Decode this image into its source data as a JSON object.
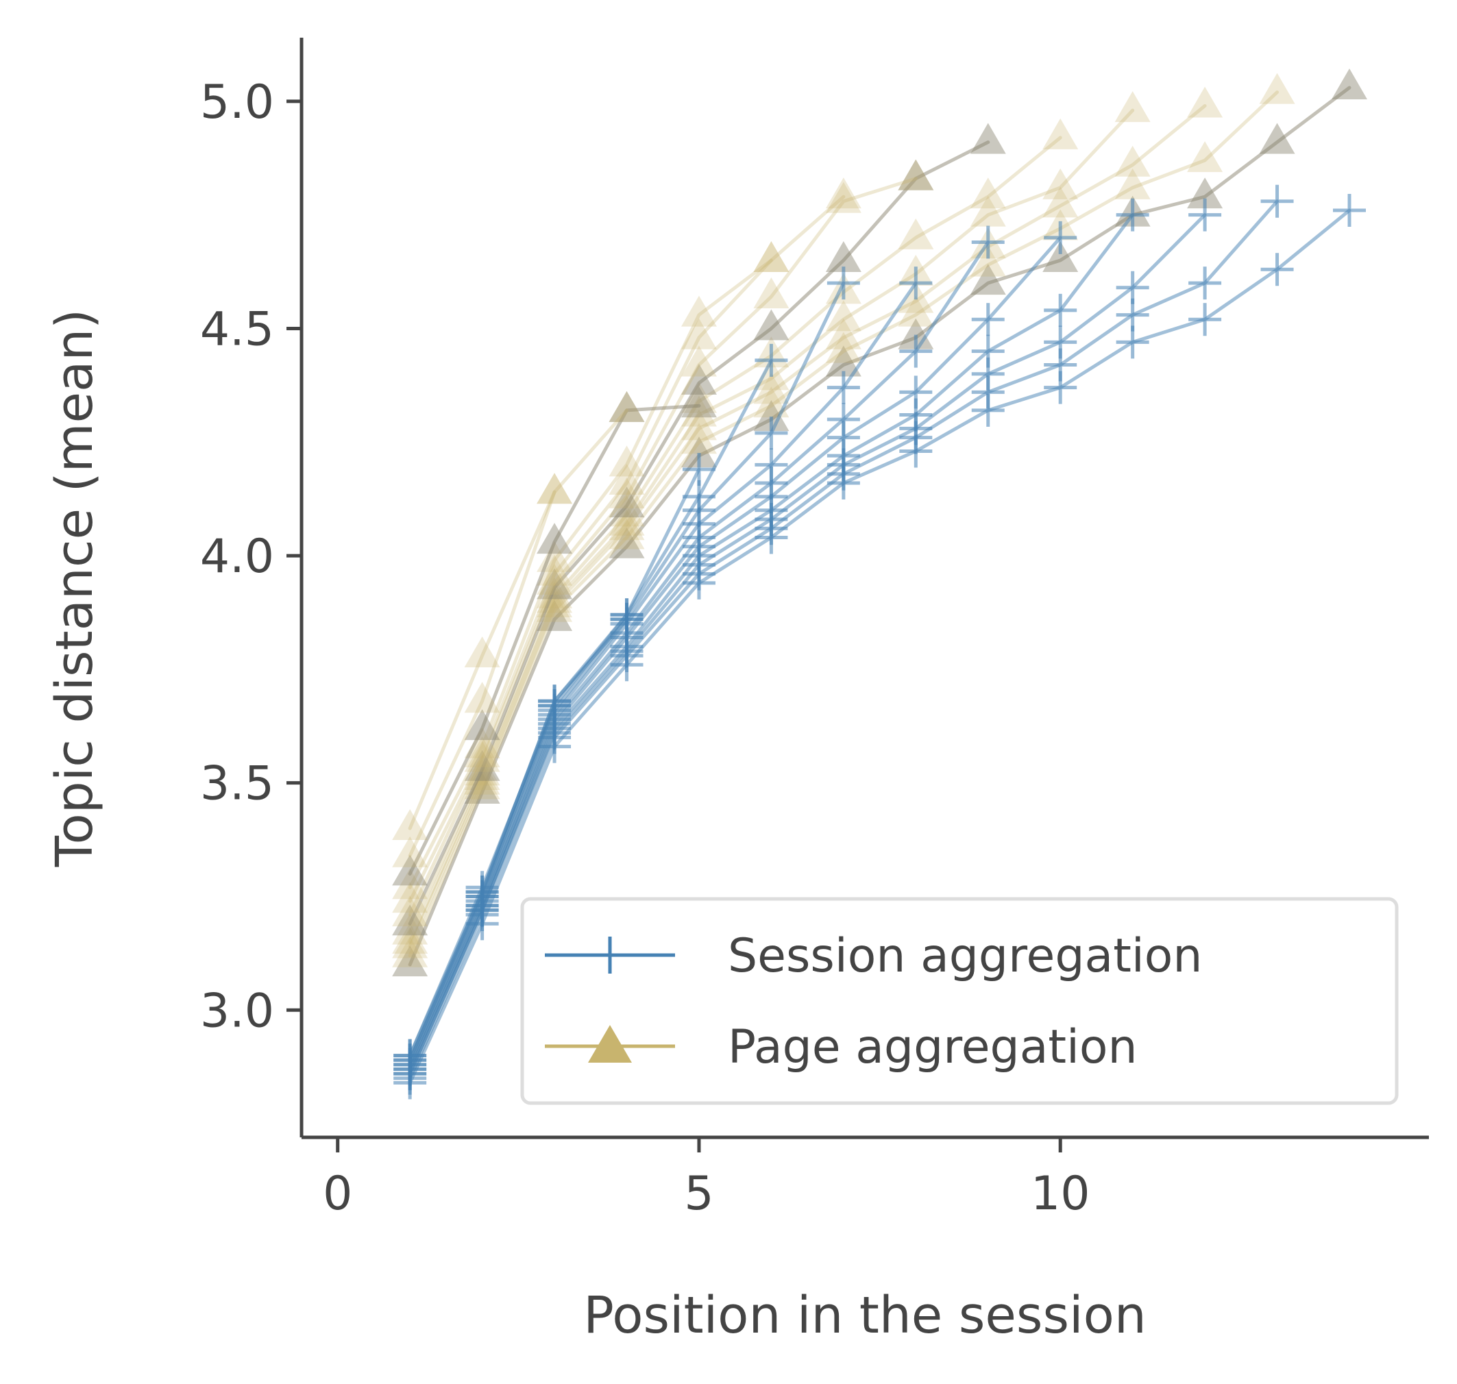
{
  "chart_data": {
    "type": "line",
    "title": "",
    "xlabel": "Position in the session",
    "ylabel": "Topic distance (mean)",
    "xlim": [
      -0.5,
      15.1
    ],
    "ylim": [
      2.72,
      5.14
    ],
    "xticks": [
      0,
      5,
      10
    ],
    "yticks": [
      3.0,
      3.5,
      4.0,
      4.5,
      5.0
    ],
    "xtick_labels": [
      "0",
      "5",
      "10"
    ],
    "ytick_labels": [
      "3.0",
      "3.5",
      "4.0",
      "4.5",
      "5.0"
    ],
    "grid": false,
    "legend": {
      "placement": "lower-right",
      "entries": [
        "Session aggregation",
        "Page aggregation"
      ]
    },
    "colors": {
      "session": "#4682b4",
      "page": "#c8b46e",
      "page_dark": "#8a8470",
      "axis": "#444444"
    },
    "series_groups": [
      {
        "group": "Session aggregation",
        "marker": "plus",
        "series": [
          {
            "x": [
              1,
              2,
              3,
              4,
              5,
              6,
              7,
              8,
              9,
              10,
              11,
              12,
              13,
              14
            ],
            "values": [
              2.84,
              3.19,
              3.58,
              3.76,
              3.94,
              4.04,
              4.16,
              4.23,
              4.32,
              4.37,
              4.47,
              4.52,
              4.63,
              4.76
            ]
          },
          {
            "x": [
              1,
              2,
              3,
              4,
              5,
              6,
              7,
              8,
              9,
              10,
              11,
              12,
              13
            ],
            "values": [
              2.85,
              3.21,
              3.6,
              3.78,
              3.96,
              4.06,
              4.18,
              4.26,
              4.36,
              4.42,
              4.53,
              4.6,
              4.78
            ]
          },
          {
            "x": [
              1,
              2,
              3,
              4,
              5,
              6,
              7,
              8,
              9,
              10,
              11,
              12
            ],
            "values": [
              2.86,
              3.22,
              3.61,
              3.79,
              3.98,
              4.08,
              4.2,
              4.28,
              4.4,
              4.47,
              4.59,
              4.75
            ]
          },
          {
            "x": [
              1,
              2,
              3,
              4,
              5,
              6,
              7,
              8,
              9,
              10,
              11
            ],
            "values": [
              2.86,
              3.22,
              3.62,
              3.8,
              4.0,
              4.1,
              4.22,
              4.31,
              4.45,
              4.54,
              4.75
            ]
          },
          {
            "x": [
              1,
              2,
              3,
              4,
              5,
              6,
              7,
              8,
              9,
              10
            ],
            "values": [
              2.87,
              3.23,
              3.63,
              3.82,
              4.02,
              4.13,
              4.26,
              4.36,
              4.52,
              4.7
            ]
          },
          {
            "x": [
              1,
              2,
              3,
              4,
              5,
              6,
              7,
              8,
              9
            ],
            "values": [
              2.87,
              3.23,
              3.64,
              3.83,
              4.04,
              4.16,
              4.3,
              4.45,
              4.69
            ]
          },
          {
            "x": [
              1,
              2,
              3,
              4,
              5,
              6,
              7,
              8
            ],
            "values": [
              2.88,
              3.24,
              3.65,
              3.85,
              4.07,
              4.2,
              4.37,
              4.6
            ]
          },
          {
            "x": [
              1,
              2,
              3,
              4,
              5,
              6,
              7
            ],
            "values": [
              2.88,
              3.25,
              3.66,
              3.86,
              4.1,
              4.27,
              4.6
            ]
          },
          {
            "x": [
              1,
              2,
              3,
              4,
              5,
              6
            ],
            "values": [
              2.89,
              3.25,
              3.67,
              3.87,
              4.13,
              4.43
            ]
          },
          {
            "x": [
              1,
              2,
              3,
              4,
              5
            ],
            "values": [
              2.89,
              3.26,
              3.68,
              3.87,
              4.19
            ]
          },
          {
            "x": [
              1,
              2,
              3,
              4
            ],
            "values": [
              2.9,
              3.26,
              3.68,
              3.86
            ]
          },
          {
            "x": [
              1,
              2,
              3
            ],
            "values": [
              2.9,
              3.27,
              3.67
            ]
          }
        ]
      },
      {
        "group": "Page aggregation",
        "marker": "triangle",
        "series": [
          {
            "x": [
              1,
              2,
              3,
              4,
              5,
              6,
              7,
              8,
              9,
              10,
              11,
              12,
              13,
              14
            ],
            "values": [
              3.1,
              3.48,
              3.86,
              4.02,
              4.22,
              4.3,
              4.42,
              4.48,
              4.6,
              4.65,
              4.75,
              4.79,
              4.91,
              5.03
            ],
            "tone": "dark"
          },
          {
            "x": [
              1,
              2,
              3,
              4,
              5,
              6,
              7,
              8,
              9,
              10,
              11,
              12,
              13
            ],
            "values": [
              3.12,
              3.49,
              3.88,
              4.04,
              4.25,
              4.33,
              4.45,
              4.53,
              4.64,
              4.72,
              4.81,
              4.87,
              5.02
            ],
            "tone": "light"
          },
          {
            "x": [
              1,
              2,
              3,
              4,
              5,
              6,
              7,
              8,
              9,
              10,
              11,
              12
            ],
            "values": [
              3.14,
              3.5,
              3.89,
              4.06,
              4.28,
              4.36,
              4.48,
              4.56,
              4.68,
              4.77,
              4.86,
              4.99
            ],
            "tone": "light"
          },
          {
            "x": [
              1,
              2,
              3,
              4,
              5,
              6,
              7,
              8,
              9,
              10,
              11
            ],
            "values": [
              3.15,
              3.51,
              3.9,
              4.07,
              4.31,
              4.39,
              4.52,
              4.62,
              4.75,
              4.81,
              4.98
            ],
            "tone": "light"
          },
          {
            "x": [
              1,
              2,
              3,
              4,
              5,
              6,
              7,
              8,
              9,
              10
            ],
            "values": [
              3.17,
              3.52,
              3.91,
              4.09,
              4.34,
              4.44,
              4.58,
              4.7,
              4.79,
              4.92
            ],
            "tone": "light"
          },
          {
            "x": [
              1,
              2,
              3,
              4,
              5,
              6,
              7,
              8,
              9
            ],
            "values": [
              3.19,
              3.53,
              3.93,
              4.11,
              4.38,
              4.5,
              4.65,
              4.83,
              4.91
            ],
            "tone": "dark"
          },
          {
            "x": [
              1,
              2,
              3,
              4,
              5,
              6,
              7,
              8
            ],
            "values": [
              3.21,
              3.55,
              3.94,
              4.13,
              4.42,
              4.57,
              4.78,
              4.83
            ],
            "tone": "light"
          },
          {
            "x": [
              1,
              2,
              3,
              4,
              5,
              6,
              7
            ],
            "values": [
              3.24,
              3.56,
              3.96,
              4.16,
              4.48,
              4.65,
              4.79
            ],
            "tone": "light"
          },
          {
            "x": [
              1,
              2,
              3,
              4,
              5,
              6
            ],
            "values": [
              3.27,
              3.58,
              3.99,
              4.2,
              4.53,
              4.65
            ],
            "tone": "light"
          },
          {
            "x": [
              1,
              2,
              3,
              4,
              5
            ],
            "values": [
              3.3,
              3.62,
              4.03,
              4.32,
              4.33
            ],
            "tone": "dark"
          },
          {
            "x": [
              1,
              2,
              3,
              4
            ],
            "values": [
              3.34,
              3.68,
              4.14,
              4.32
            ],
            "tone": "light"
          },
          {
            "x": [
              1,
              2,
              3
            ],
            "values": [
              3.4,
              3.78,
              4.14
            ],
            "tone": "light"
          }
        ]
      }
    ]
  }
}
